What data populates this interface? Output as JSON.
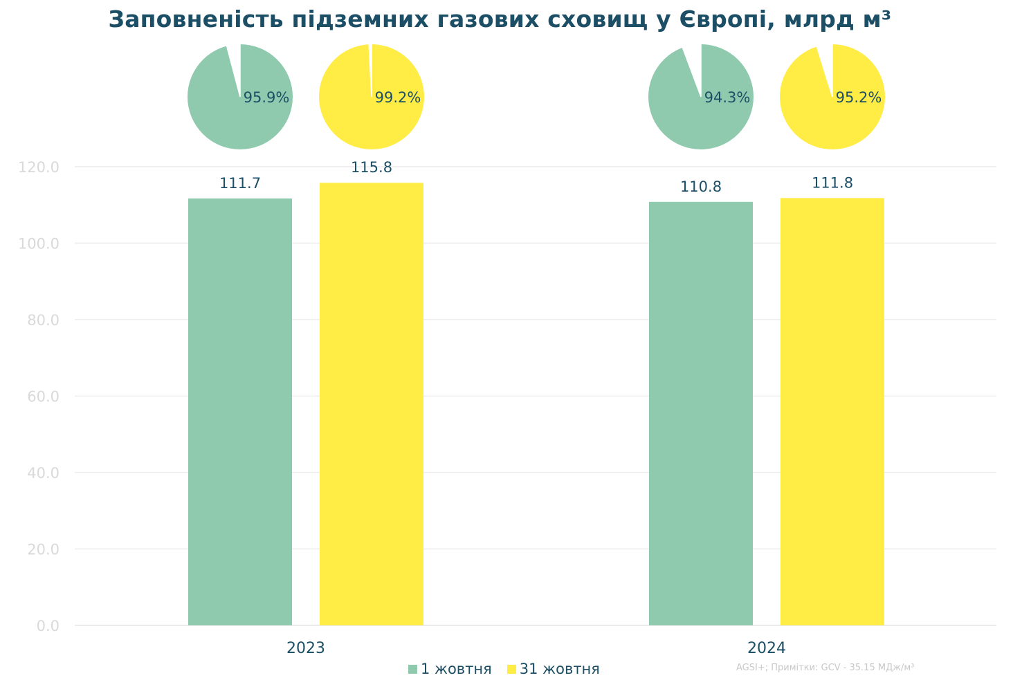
{
  "chart_data": {
    "type": "bar",
    "title": "Заповненість підземних газових сховищ у Європі, млрд м³",
    "categories": [
      "2023",
      "2024"
    ],
    "series": [
      {
        "name": "1 жовтня",
        "color": "#8fcaae",
        "values": [
          111.7,
          110.8
        ],
        "labels": [
          "111.7",
          "110.8"
        ]
      },
      {
        "name": "31 жовтня",
        "color": "#ffec45",
        "values": [
          115.8,
          111.8
        ],
        "labels": [
          "115.8",
          "111.8"
        ]
      }
    ],
    "ylim": [
      0,
      120
    ],
    "yticks": [
      "0.0",
      "20.0",
      "40.0",
      "60.0",
      "80.0",
      "100.0",
      "120.0"
    ],
    "grid": true,
    "legend_position": "bottom",
    "fill_percent": {
      "1 жовтня": {
        "values": [
          95.9,
          94.3
        ],
        "labels": [
          "95.9%",
          "94.3%"
        ]
      },
      "31 жовтня": {
        "values": [
          99.2,
          95.2
        ],
        "labels": [
          "99.2%",
          "95.2%"
        ]
      }
    },
    "pie_empty_color": "#ffffff",
    "grid_color": "#ececec",
    "text_color": "#1c4f66"
  },
  "legend": {
    "items": [
      {
        "label": "1 жовтня",
        "color": "#8fcaae"
      },
      {
        "label": "31 жовтня",
        "color": "#ffec45"
      }
    ]
  },
  "source_note": "AGSI+; Примітки: GCV - 35.15 МДж/м³"
}
